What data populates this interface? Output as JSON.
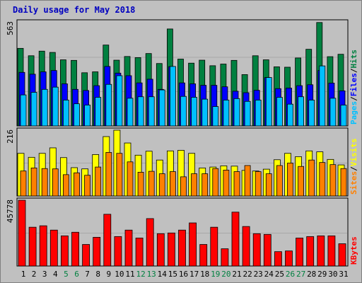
{
  "title": "Daily usage for May 2018",
  "colors": {
    "hits": "#008040",
    "files": "#0000ff",
    "pages": "#00c0ff",
    "visits": "#ffff00",
    "sites": "#ff8000",
    "kbytes": "#ff0000",
    "weekend_label": "#008040",
    "weekday_label": "#000000",
    "title": "#0000c0",
    "panel_bg": "#c0c0c0"
  },
  "chart_data": [
    {
      "type": "bar",
      "panel": "hits-files-pages",
      "ymax_label": "563",
      "ylim": [
        0,
        563
      ],
      "legend": [
        "Pages",
        "/",
        "Files",
        "/",
        "Hits"
      ],
      "categories": [
        "1",
        "2",
        "3",
        "4",
        "5",
        "6",
        "7",
        "8",
        "9",
        "10",
        "11",
        "12",
        "13",
        "14",
        "15",
        "16",
        "17",
        "18",
        "19",
        "20",
        "21",
        "22",
        "23",
        "24",
        "25",
        "26",
        "27",
        "28",
        "29",
        "30",
        "31"
      ],
      "weekend": [
        "5",
        "6",
        "12",
        "13",
        "19",
        "20",
        "26",
        "27"
      ],
      "series": [
        {
          "name": "Hits",
          "values": [
            420,
            380,
            405,
            398,
            358,
            355,
            288,
            293,
            438,
            356,
            376,
            370,
            392,
            338,
            525,
            362,
            340,
            356,
            326,
            335,
            355,
            278,
            380,
            358,
            320,
            318,
            368,
            415,
            560,
            375,
            388
          ]
        },
        {
          "name": "Files",
          "values": [
            290,
            280,
            293,
            300,
            228,
            198,
            192,
            218,
            322,
            286,
            272,
            233,
            253,
            198,
            321,
            233,
            228,
            220,
            220,
            212,
            188,
            180,
            193,
            262,
            202,
            205,
            218,
            223,
            300,
            232,
            190
          ]
        },
        {
          "name": "Pages",
          "values": [
            168,
            182,
            198,
            210,
            140,
            120,
            113,
            155,
            225,
            272,
            150,
            158,
            158,
            195,
            322,
            160,
            155,
            145,
            105,
            140,
            148,
            133,
            140,
            262,
            155,
            118,
            158,
            140,
            325,
            150,
            113
          ]
        }
      ]
    },
    {
      "type": "bar",
      "panel": "visits-sites",
      "ymax_label": "216",
      "ylim": [
        0,
        216
      ],
      "legend": [
        "Sites",
        "/",
        "Visits"
      ],
      "categories": [
        "1",
        "2",
        "3",
        "4",
        "5",
        "6",
        "7",
        "8",
        "9",
        "10",
        "11",
        "12",
        "13",
        "14",
        "15",
        "16",
        "17",
        "18",
        "19",
        "20",
        "21",
        "22",
        "23",
        "24",
        "25",
        "26",
        "27",
        "28",
        "29",
        "30",
        "31"
      ],
      "series": [
        {
          "name": "Visits",
          "values": [
            140,
            127,
            140,
            158,
            126,
            93,
            89,
            136,
            195,
            216,
            174,
            134,
            147,
            118,
            148,
            150,
            140,
            92,
            95,
            99,
            98,
            84,
            82,
            88,
            119,
            140,
            129,
            148,
            145,
            120,
            102
          ]
        },
        {
          "name": "Sites",
          "values": [
            82,
            92,
            90,
            89,
            70,
            76,
            68,
            95,
            143,
            140,
            112,
            78,
            81,
            73,
            80,
            63,
            73,
            73,
            90,
            85,
            80,
            100,
            80,
            73,
            100,
            108,
            97,
            118,
            110,
            103,
            90
          ]
        }
      ]
    },
    {
      "type": "bar",
      "panel": "kbytes",
      "ymax_label": "45778",
      "ylim": [
        0,
        45778
      ],
      "legend": [
        "KBytes"
      ],
      "categories": [
        "1",
        "2",
        "3",
        "4",
        "5",
        "6",
        "7",
        "8",
        "9",
        "10",
        "11",
        "12",
        "13",
        "14",
        "15",
        "16",
        "17",
        "18",
        "19",
        "20",
        "21",
        "22",
        "23",
        "24",
        "25",
        "26",
        "27",
        "28",
        "29",
        "30",
        "31"
      ],
      "series": [
        {
          "name": "KBytes",
          "values": [
            45778,
            27000,
            28000,
            25000,
            21000,
            23500,
            15000,
            20000,
            36000,
            20500,
            25000,
            19500,
            33000,
            22500,
            23000,
            25000,
            30000,
            15000,
            27000,
            12000,
            37500,
            27500,
            22500,
            22000,
            10000,
            10500,
            19500,
            20500,
            21000,
            21000,
            15500
          ]
        }
      ]
    }
  ]
}
